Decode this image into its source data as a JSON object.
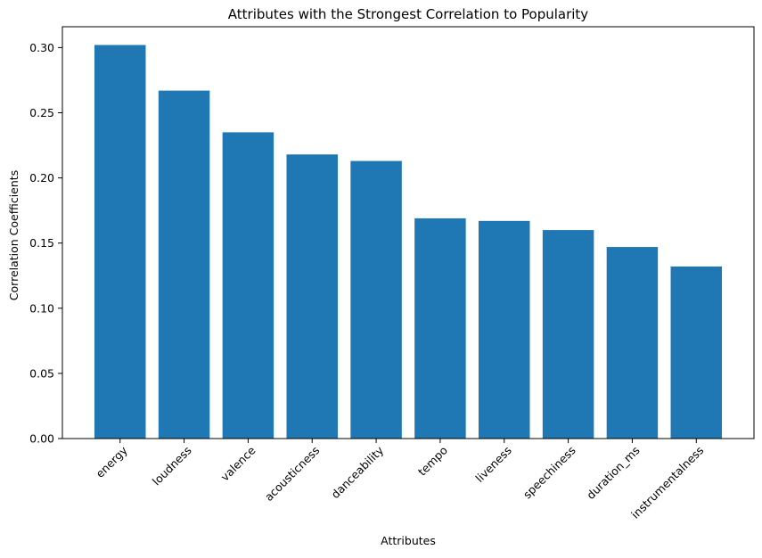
{
  "chart_data": {
    "type": "bar",
    "title": "Attributes with the Strongest Correlation to Popularity",
    "xlabel": "Attributes",
    "ylabel": "Correlation Coefficients",
    "categories": [
      "energy",
      "loudness",
      "valence",
      "acousticness",
      "danceability",
      "tempo",
      "liveness",
      "speechiness",
      "duration_ms",
      "instrumentalness"
    ],
    "values": [
      0.302,
      0.267,
      0.235,
      0.218,
      0.213,
      0.169,
      0.167,
      0.16,
      0.147,
      0.132
    ],
    "ylim": [
      0,
      0.316
    ],
    "yticks": [
      "0.00",
      "0.05",
      "0.10",
      "0.15",
      "0.20",
      "0.25",
      "0.30"
    ],
    "bar_color": "#1f77b4",
    "grid": false,
    "legend": "none"
  }
}
